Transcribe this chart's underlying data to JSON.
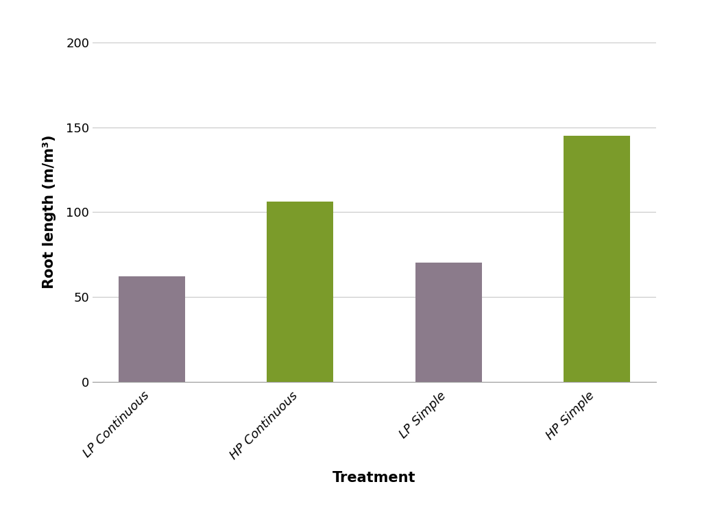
{
  "categories": [
    "LP Continuous",
    "HP Continuous",
    "LP Simple",
    "HP Simple"
  ],
  "values": [
    62,
    106,
    70,
    145
  ],
  "bar_colors": [
    "#8B7B8B",
    "#7B9B2A",
    "#8B7B8B",
    "#7B9B2A"
  ],
  "xlabel": "Treatment",
  "ylabel": "Root length (m/m³)",
  "ylim": [
    0,
    200
  ],
  "yticks": [
    0,
    50,
    100,
    150,
    200
  ],
  "background_color": "#ffffff",
  "xlabel_fontsize": 15,
  "ylabel_fontsize": 15,
  "tick_fontsize": 13,
  "bar_width": 0.45,
  "grid_color": "#c8c8c8",
  "xlabel_fontweight": "bold",
  "ylabel_fontweight": "bold"
}
